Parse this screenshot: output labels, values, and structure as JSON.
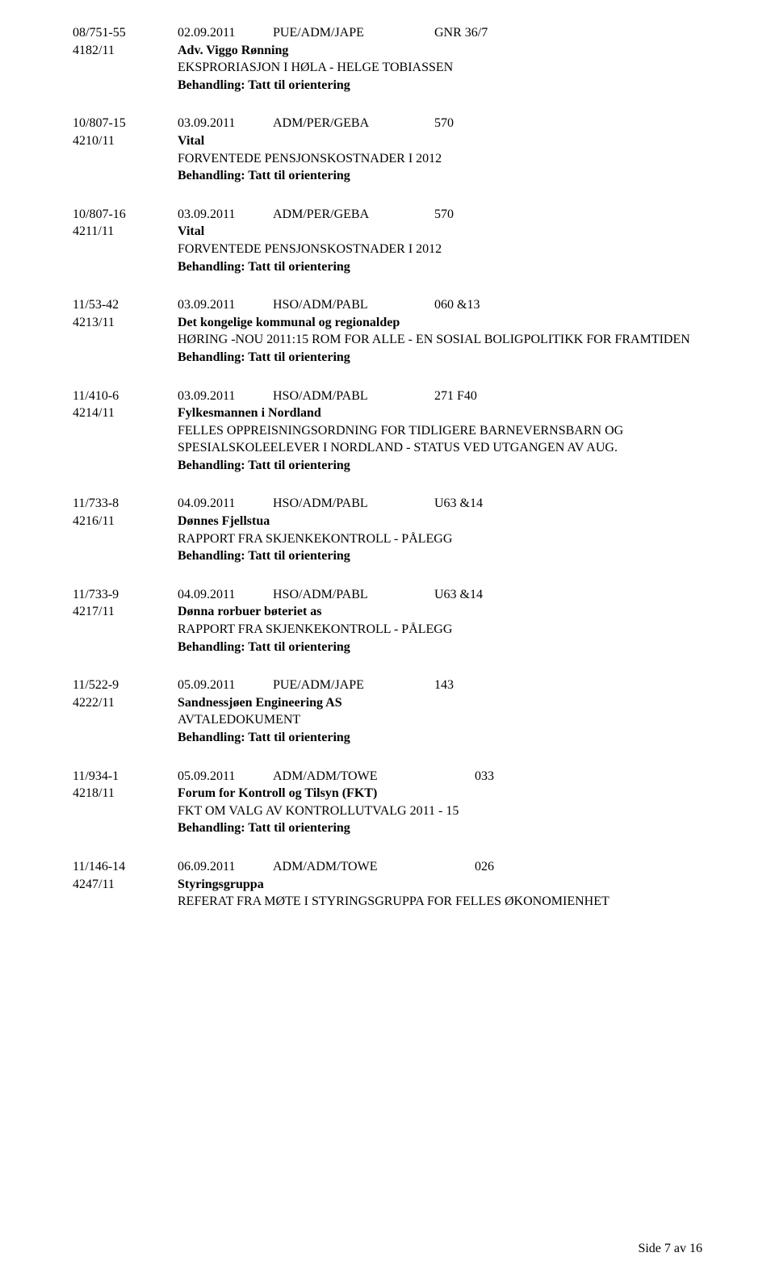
{
  "entries": [
    {
      "ref": "08/751-55",
      "sub": "4182/11",
      "date": "02.09.2011",
      "dept": "PUE/ADM/JAPE",
      "codes": "GNR 36/7",
      "party": "Adv. Viggo Rønning",
      "subject": "EKSPRORIASJON I HØLA - HELGE TOBIASSEN",
      "handling": "Behandling: Tatt til orientering"
    },
    {
      "ref": "10/807-15",
      "sub": "4210/11",
      "date": "03.09.2011",
      "dept": "ADM/PER/GEBA",
      "codes": "570",
      "party": "Vital",
      "subject": "FORVENTEDE PENSJONSKOSTNADER I 2012",
      "handling": "Behandling: Tatt til orientering"
    },
    {
      "ref": "10/807-16",
      "sub": "4211/11",
      "date": "03.09.2011",
      "dept": "ADM/PER/GEBA",
      "codes": "570",
      "party": "Vital",
      "subject": "FORVENTEDE PENSJONSKOSTNADER I 2012",
      "handling": "Behandling: Tatt til orientering"
    },
    {
      "ref": "11/53-42",
      "sub": "4213/11",
      "date": "03.09.2011",
      "dept": "HSO/ADM/PABL",
      "codes": "060 &13",
      "party": "Det kongelige kommunal og regionaldep",
      "subject": "HØRING -NOU 2011:15 ROM FOR ALLE - EN SOSIAL BOLIGPOLITIKK FOR FRAMTIDEN",
      "handling": "Behandling: Tatt til orientering"
    },
    {
      "ref": "11/410-6",
      "sub": "4214/11",
      "date": "03.09.2011",
      "dept": "HSO/ADM/PABL",
      "codes": "271 F40",
      "party": "Fylkesmannen i Nordland",
      "subject": "FELLES OPPREISNINGSORDNING FOR TIDLIGERE BARNEVERNSBARN OG SPESIALSKOLEELEVER I NORDLAND - STATUS VED UTGANGEN AV AUG.",
      "handling": "Behandling: Tatt til orientering"
    },
    {
      "ref": "11/733-8",
      "sub": "4216/11",
      "date": "04.09.2011",
      "dept": "HSO/ADM/PABL",
      "codes": "U63 &14",
      "party": "Dønnes Fjellstua",
      "subject": "RAPPORT FRA SKJENKEKONTROLL - PÅLEGG",
      "handling": "Behandling: Tatt til orientering"
    },
    {
      "ref": "11/733-9",
      "sub": "4217/11",
      "date": "04.09.2011",
      "dept": "HSO/ADM/PABL",
      "codes": "U63 &14",
      "party": "Dønna rorbuer bøteriet as",
      "subject": "RAPPORT FRA SKJENKEKONTROLL - PÅLEGG",
      "handling": "Behandling: Tatt til orientering"
    },
    {
      "ref": "11/522-9",
      "sub": "4222/11",
      "date": "05.09.2011",
      "dept": "PUE/ADM/JAPE",
      "codes": "143",
      "party": "Sandnessjøen Engineering AS",
      "subject": "AVTALEDOKUMENT",
      "handling": "Behandling: Tatt til orientering"
    },
    {
      "ref": "11/934-1",
      "sub": "4218/11",
      "date": "05.09.2011",
      "dept": "ADM/ADM/TOWE",
      "codes": "033",
      "dept_pad": true,
      "party": "Forum for Kontroll og Tilsyn (FKT)",
      "subject": "FKT OM VALG AV KONTROLLUTVALG 2011 - 15",
      "handling": "Behandling: Tatt til orientering"
    },
    {
      "ref": "11/146-14",
      "sub": "4247/11",
      "date": "06.09.2011",
      "dept": "ADM/ADM/TOWE",
      "codes": "026",
      "dept_pad": true,
      "party": "Styringsgruppa",
      "subject": "REFERAT FRA MØTE I STYRINGSGRUPPA FOR FELLES ØKONOMIENHET",
      "handling": ""
    }
  ],
  "footer": "Side 7 av 16"
}
